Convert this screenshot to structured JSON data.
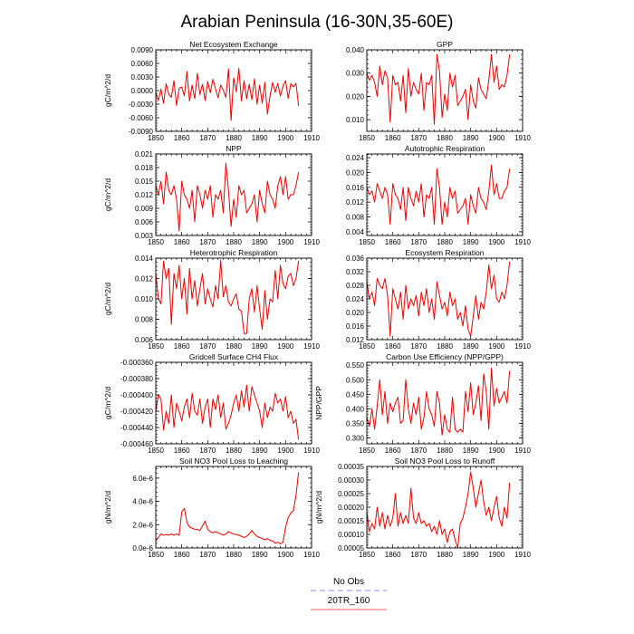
{
  "figure_title": "Arabian Peninsula (16-30N,35-60E)",
  "legend": [
    {
      "label": "No Obs",
      "color": "#a0a0ff",
      "dashed": true
    },
    {
      "label": "20TR_160",
      "color": "#ff8080",
      "dashed": false
    }
  ],
  "series_color": "#ee0000",
  "chart_data": [
    {
      "type": "line",
      "title": "Net Ecosystem Exchange",
      "ylabel": "gC/m^2/d",
      "xlim": [
        1850,
        1910
      ],
      "ylim": [
        -0.009,
        0.009
      ],
      "xticks": [
        1850,
        1860,
        1870,
        1880,
        1890,
        1900,
        1910
      ],
      "yticks": [
        -0.009,
        -0.006,
        -0.003,
        0.0,
        0.003,
        0.006,
        0.009
      ],
      "ytick_labels": [
        "-0.0090",
        "-0.0060",
        "-0.0030",
        "0.0000",
        "0.0030",
        "0.0060",
        "0.0090"
      ],
      "x_start": 1850,
      "series": [
        {
          "values": [
            -0.0004,
            -0.0022,
            0.0003,
            -0.0028,
            0.0015,
            -0.0008,
            -0.0015,
            0.0022,
            -0.0033,
            0.0005,
            0.0008,
            -0.0012,
            0.0042,
            -0.0023,
            0.0012,
            -0.0018,
            0.0038,
            -0.0009,
            0.0014,
            -0.0022,
            0.002,
            -0.0005,
            0.0025,
            0.0004,
            -0.0016,
            0.0012,
            0.0001,
            -0.0015,
            0.0048,
            -0.0066,
            0.0028,
            -0.0003,
            0.0049,
            -0.0023,
            0.0022,
            -0.0018,
            0.0014,
            -0.002,
            0.0026,
            -0.003,
            0.0012,
            -0.0028,
            0.0018,
            -0.0052,
            -0.0012,
            0.0018,
            -0.0004,
            0.0016,
            -0.0012,
            0.001,
            0.0022,
            -0.0017,
            0.0015,
            0.0008,
            0.0016,
            -0.0034
          ]
        }
      ]
    },
    {
      "type": "line",
      "title": "GPP",
      "ylabel": "",
      "xlim": [
        1850,
        1910
      ],
      "ylim": [
        0.005,
        0.04
      ],
      "xticks": [
        1850,
        1860,
        1870,
        1880,
        1890,
        1900,
        1910
      ],
      "yticks": [
        0.01,
        0.02,
        0.03,
        0.04
      ],
      "ytick_labels": [
        "0.010",
        "0.020",
        "0.030",
        "0.040"
      ],
      "x_start": 1850,
      "series": [
        {
          "values": [
            0.03,
            0.027,
            0.029,
            0.026,
            0.02,
            0.033,
            0.025,
            0.031,
            0.028,
            0.009,
            0.029,
            0.025,
            0.026,
            0.018,
            0.029,
            0.013,
            0.032,
            0.02,
            0.026,
            0.023,
            0.021,
            0.03,
            0.014,
            0.026,
            0.025,
            0.029,
            0.008,
            0.038,
            0.031,
            0.011,
            0.021,
            0.014,
            0.03,
            0.024,
            0.029,
            0.016,
            0.018,
            0.02,
            0.023,
            0.01,
            0.025,
            0.018,
            0.015,
            0.028,
            0.023,
            0.021,
            0.019,
            0.027,
            0.038,
            0.026,
            0.033,
            0.023,
            0.025,
            0.024,
            0.029,
            0.038
          ]
        }
      ]
    },
    {
      "type": "line",
      "title": "NPP",
      "ylabel": "gC/m^2/d",
      "xlim": [
        1850,
        1910
      ],
      "ylim": [
        0.003,
        0.021
      ],
      "xticks": [
        1850,
        1860,
        1870,
        1880,
        1890,
        1900,
        1910
      ],
      "yticks": [
        0.003,
        0.006,
        0.009,
        0.012,
        0.015,
        0.018,
        0.021
      ],
      "ytick_labels": [
        "0.003",
        "0.006",
        "0.009",
        "0.012",
        "0.015",
        "0.018",
        "0.021"
      ],
      "x_start": 1850,
      "series": [
        {
          "values": [
            0.014,
            0.012,
            0.015,
            0.01,
            0.017,
            0.013,
            0.012,
            0.014,
            0.011,
            0.004,
            0.015,
            0.012,
            0.011,
            0.009,
            0.013,
            0.006,
            0.014,
            0.012,
            0.009,
            0.013,
            0.011,
            0.014,
            0.007,
            0.012,
            0.011,
            0.013,
            0.008,
            0.019,
            0.013,
            0.005,
            0.011,
            0.007,
            0.014,
            0.012,
            0.013,
            0.008,
            0.009,
            0.01,
            0.012,
            0.006,
            0.013,
            0.01,
            0.008,
            0.015,
            0.012,
            0.011,
            0.009,
            0.014,
            0.016,
            0.012,
            0.016,
            0.011,
            0.012,
            0.012,
            0.014,
            0.017
          ]
        }
      ]
    },
    {
      "type": "line",
      "title": "Autotrophic Respiration",
      "ylabel": "",
      "xlim": [
        1850,
        1910
      ],
      "ylim": [
        0.003,
        0.025
      ],
      "xticks": [
        1850,
        1860,
        1870,
        1880,
        1890,
        1900,
        1910
      ],
      "yticks": [
        0.004,
        0.008,
        0.012,
        0.016,
        0.02,
        0.024
      ],
      "ytick_labels": [
        "0.004",
        "0.008",
        "0.012",
        "0.016",
        "0.020",
        "0.024"
      ],
      "x_start": 1850,
      "series": [
        {
          "values": [
            0.016,
            0.014,
            0.015,
            0.012,
            0.017,
            0.015,
            0.013,
            0.016,
            0.014,
            0.006,
            0.017,
            0.014,
            0.013,
            0.01,
            0.016,
            0.007,
            0.016,
            0.013,
            0.011,
            0.015,
            0.012,
            0.017,
            0.008,
            0.014,
            0.013,
            0.016,
            0.006,
            0.021,
            0.016,
            0.006,
            0.012,
            0.008,
            0.016,
            0.013,
            0.015,
            0.009,
            0.01,
            0.011,
            0.013,
            0.006,
            0.014,
            0.011,
            0.009,
            0.016,
            0.013,
            0.012,
            0.01,
            0.015,
            0.022,
            0.014,
            0.017,
            0.013,
            0.013,
            0.015,
            0.016,
            0.021
          ]
        }
      ]
    },
    {
      "type": "line",
      "title": "Heterotrophic Respiration",
      "ylabel": "gC/m^2/d",
      "xlim": [
        1850,
        1910
      ],
      "ylim": [
        0.006,
        0.014
      ],
      "xticks": [
        1850,
        1860,
        1870,
        1880,
        1890,
        1900,
        1910
      ],
      "yticks": [
        0.006,
        0.008,
        0.01,
        0.012,
        0.014
      ],
      "ytick_labels": [
        "0.006",
        "0.008",
        "0.010",
        "0.012",
        "0.014"
      ],
      "x_start": 1850,
      "series": [
        {
          "values": [
            0.0125,
            0.01,
            0.0095,
            0.0137,
            0.012,
            0.013,
            0.0075,
            0.0125,
            0.011,
            0.0133,
            0.01,
            0.012,
            0.0085,
            0.013,
            0.01,
            0.0118,
            0.0093,
            0.011,
            0.0125,
            0.0095,
            0.011,
            0.01,
            0.0092,
            0.0113,
            0.01,
            0.0138,
            0.0102,
            0.0113,
            0.0097,
            0.0093,
            0.01,
            0.0105,
            0.009,
            0.0088,
            0.0066,
            0.0066,
            0.01,
            0.011,
            0.0087,
            0.0113,
            0.009,
            0.007,
            0.0108,
            0.008,
            0.01,
            0.0097,
            0.0128,
            0.01,
            0.0133,
            0.0115,
            0.011,
            0.0122,
            0.0125,
            0.0113,
            0.012,
            0.0137
          ]
        }
      ]
    },
    {
      "type": "line",
      "title": "Ecosystem Respiration",
      "ylabel": "",
      "xlim": [
        1850,
        1910
      ],
      "ylim": [
        0.012,
        0.036
      ],
      "xticks": [
        1850,
        1860,
        1870,
        1880,
        1890,
        1900,
        1910
      ],
      "yticks": [
        0.012,
        0.016,
        0.02,
        0.024,
        0.028,
        0.032,
        0.036
      ],
      "ytick_labels": [
        "0.012",
        "0.016",
        "0.020",
        "0.024",
        "0.028",
        "0.032",
        "0.036"
      ],
      "x_start": 1850,
      "series": [
        {
          "values": [
            0.029,
            0.024,
            0.026,
            0.022,
            0.03,
            0.028,
            0.027,
            0.03,
            0.025,
            0.013,
            0.027,
            0.024,
            0.021,
            0.026,
            0.018,
            0.028,
            0.021,
            0.024,
            0.022,
            0.025,
            0.019,
            0.026,
            0.022,
            0.027,
            0.02,
            0.024,
            0.018,
            0.029,
            0.025,
            0.021,
            0.023,
            0.019,
            0.026,
            0.022,
            0.024,
            0.018,
            0.02,
            0.016,
            0.022,
            0.015,
            0.013,
            0.019,
            0.025,
            0.018,
            0.023,
            0.021,
            0.026,
            0.034,
            0.027,
            0.031,
            0.024,
            0.023,
            0.026,
            0.024,
            0.028,
            0.035
          ]
        }
      ]
    },
    {
      "type": "line",
      "title": "Gridcell Surface CH4 Flux",
      "ylabel": "gC/m^2/d",
      "xlim": [
        1850,
        1910
      ],
      "ylim": [
        -0.00046,
        -0.00036
      ],
      "xticks": [
        1850,
        1860,
        1870,
        1880,
        1890,
        1900,
        1910
      ],
      "yticks": [
        -0.00036,
        -0.00038,
        -0.0004,
        -0.00042,
        -0.00044,
        -0.00046
      ],
      "ytick_labels": [
        "-0.000360",
        "-0.000380",
        "-0.000400",
        "-0.000420",
        "-0.000440",
        "-0.000460"
      ],
      "x_start": 1850,
      "series": [
        {
          "values": [
            -0.00042,
            -0.0004,
            -0.000405,
            -0.000443,
            -0.00042,
            -0.000435,
            -0.0004,
            -0.00044,
            -0.00041,
            -0.00042,
            -0.000432,
            -0.000415,
            -0.000405,
            -0.000428,
            -0.000398,
            -0.00042,
            -0.000425,
            -0.000405,
            -0.000435,
            -0.000415,
            -0.000405,
            -0.00044,
            -0.000405,
            -0.000418,
            -0.0004,
            -0.000428,
            -0.00041,
            -0.000442,
            -0.000435,
            -0.000425,
            -0.00041,
            -0.0004,
            -0.00042,
            -0.000395,
            -0.000415,
            -0.000388,
            -0.00042,
            -0.00039,
            -0.0004,
            -0.00041,
            -0.00042,
            -0.00044,
            -0.00041,
            -0.000428,
            -0.000415,
            -0.00042,
            -0.000398,
            -0.00041,
            -0.000405,
            -0.00042,
            -0.000402,
            -0.000428,
            -0.00042,
            -0.000435,
            -0.00043,
            -0.000455
          ]
        }
      ]
    },
    {
      "type": "line",
      "title": "Carbon Use Efficiency (NPP/GPP)",
      "ylabel": "NPP/GPP",
      "xlim": [
        1850,
        1910
      ],
      "ylim": [
        0.28,
        0.56
      ],
      "xticks": [
        1850,
        1860,
        1870,
        1880,
        1890,
        1900,
        1910
      ],
      "yticks": [
        0.3,
        0.35,
        0.4,
        0.45,
        0.5,
        0.55
      ],
      "ytick_labels": [
        "0.300",
        "0.350",
        "0.400",
        "0.450",
        "0.500",
        "0.550"
      ],
      "x_start": 1850,
      "series": [
        {
          "values": [
            0.37,
            0.34,
            0.4,
            0.33,
            0.41,
            0.5,
            0.38,
            0.46,
            0.35,
            0.42,
            0.39,
            0.42,
            0.44,
            0.35,
            0.36,
            0.5,
            0.4,
            0.35,
            0.42,
            0.38,
            0.44,
            0.33,
            0.37,
            0.46,
            0.4,
            0.38,
            0.34,
            0.46,
            0.42,
            0.31,
            0.38,
            0.33,
            0.32,
            0.44,
            0.33,
            0.32,
            0.33,
            0.32,
            0.46,
            0.39,
            0.49,
            0.38,
            0.42,
            0.48,
            0.36,
            0.52,
            0.46,
            0.33,
            0.54,
            0.41,
            0.47,
            0.42,
            0.44,
            0.46,
            0.42,
            0.53
          ]
        }
      ]
    },
    {
      "type": "line",
      "title": "Soil NO3 Pool Loss to Leaching",
      "ylabel": "gN/m^2/d",
      "xlim": [
        1850,
        1910
      ],
      "ylim": [
        0.0,
        7e-06
      ],
      "xticks": [
        1850,
        1860,
        1870,
        1880,
        1890,
        1900,
        1910
      ],
      "yticks": [
        0.0,
        2e-06,
        4e-06,
        6e-06
      ],
      "ytick_labels": [
        "0.0e-6",
        "2.0e-6",
        "4.0e-6",
        "6.0e-6"
      ],
      "x_start": 1850,
      "series": [
        {
          "values": [
            6e-07,
            9e-07,
            1.2e-06,
            1.1e-06,
            1.15e-06,
            1.1e-06,
            1.2e-06,
            1.1e-06,
            1.2e-06,
            1.1e-06,
            3.1e-06,
            3.4e-06,
            2.2e-06,
            1.8e-06,
            1.7e-06,
            1.6e-06,
            1.6e-06,
            1.5e-06,
            1.9e-06,
            2.3e-06,
            1.6e-06,
            1.4e-06,
            1.3e-06,
            1.4e-06,
            1.3e-06,
            1.2e-06,
            1.1e-06,
            1.2e-06,
            1.4e-06,
            1.3e-06,
            1.2e-06,
            1.15e-06,
            1.1e-06,
            1e-06,
            9e-07,
            1e-06,
            1.2e-06,
            1.5e-06,
            1.2e-06,
            1e-06,
            9e-07,
            8e-07,
            7e-07,
            8e-07,
            6.5e-07,
            6e-07,
            4e-07,
            5e-07,
            3.5e-07,
            5e-07,
            1.8e-06,
            2.6e-06,
            3e-06,
            3.2e-06,
            4.5e-06,
            6.5e-06
          ]
        }
      ]
    },
    {
      "type": "line",
      "title": "Soil NO3 Pool Loss to Runoff",
      "ylabel": "gN/m^2/d",
      "xlim": [
        1850,
        1910
      ],
      "ylim": [
        5e-05,
        0.00035
      ],
      "xticks": [
        1850,
        1860,
        1870,
        1880,
        1890,
        1900,
        1910
      ],
      "yticks": [
        5e-05,
        0.0001,
        0.00015,
        0.0002,
        0.00025,
        0.0003,
        0.00035
      ],
      "ytick_labels": [
        "0.00005",
        "0.00010",
        "0.00015",
        "0.00020",
        "0.00025",
        "0.00030",
        "0.00035"
      ],
      "x_start": 1850,
      "series": [
        {
          "values": [
            0.00018,
            0.00011,
            0.00014,
            0.00012,
            0.0002,
            0.00013,
            0.00018,
            0.00012,
            0.00017,
            0.00013,
            0.00016,
            0.00025,
            0.00013,
            0.00018,
            0.00014,
            0.00017,
            0.00014,
            0.00027,
            0.00016,
            0.00014,
            0.00018,
            0.00014,
            0.00015,
            0.00013,
            0.00014,
            0.00011,
            0.00013,
            0.0001,
            0.00015,
            0.0001,
            0.00012,
            7e-05,
            0.00011,
            0.00012,
            8e-05,
            5e-05,
            0.00014,
            0.00016,
            0.0002,
            0.00025,
            0.00033,
            0.00027,
            0.0002,
            0.00025,
            0.0003,
            0.00022,
            0.00017,
            0.0002,
            0.00015,
            0.0002,
            0.00024,
            0.00016,
            0.00013,
            0.0002,
            0.00016,
            0.00029
          ]
        }
      ]
    }
  ]
}
